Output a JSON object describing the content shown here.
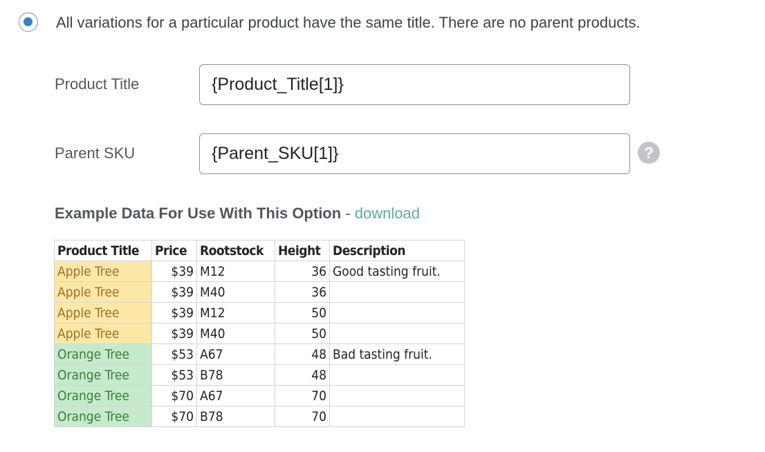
{
  "option": {
    "label": "All variations for a particular product have the same title. There are no parent products.",
    "selected": true,
    "accent": "#3582c4"
  },
  "fields": [
    {
      "label": "Product Title",
      "value": "{Product_Title[1]}"
    },
    {
      "label": "Parent SKU",
      "value": "{Parent_SKU[1]}",
      "help_icon": "question-circle-icon"
    }
  ],
  "example": {
    "title": "Example Data For Use With This Option",
    "separator": " - ",
    "link": "download"
  },
  "table": {
    "headers": [
      "Product Title",
      "Price",
      "Rootstock",
      "Height",
      "Description"
    ],
    "rows": [
      [
        "Apple Tree",
        "$39",
        "M12",
        "36",
        "Good tasting fruit."
      ],
      [
        "Apple Tree",
        "$39",
        "M40",
        "36",
        ""
      ],
      [
        "Apple Tree",
        "$39",
        "M12",
        "50",
        ""
      ],
      [
        "Apple Tree",
        "$39",
        "M40",
        "50",
        ""
      ],
      [
        "Orange Tree",
        "$53",
        "A67",
        "48",
        "Bad tasting fruit."
      ],
      [
        "Orange Tree",
        "$53",
        "B78",
        "48",
        ""
      ],
      [
        "Orange Tree",
        "$70",
        "A67",
        "70",
        ""
      ],
      [
        "Orange Tree",
        "$70",
        "B78",
        "70",
        ""
      ]
    ]
  }
}
